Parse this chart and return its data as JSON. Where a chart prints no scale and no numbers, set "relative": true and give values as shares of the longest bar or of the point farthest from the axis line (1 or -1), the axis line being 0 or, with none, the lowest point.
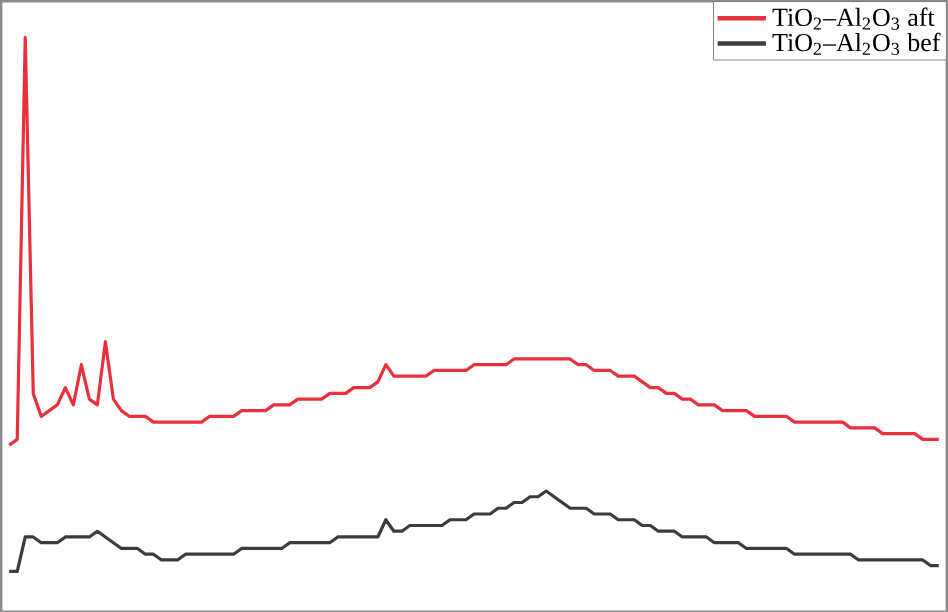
{
  "chart_data": {
    "type": "line",
    "relative": true,
    "legend": "top right",
    "marker": "none",
    "line_style": "solid",
    "categories": [
      null,
      null,
      null,
      null,
      null,
      null,
      null,
      null,
      null,
      null,
      null,
      null,
      null,
      null,
      null,
      null,
      null,
      null,
      null,
      null,
      null,
      null,
      null,
      null,
      null,
      null,
      null,
      null,
      null,
      null,
      null,
      null,
      null,
      null,
      null,
      null,
      null,
      null,
      null,
      null,
      null,
      null,
      null,
      null,
      null,
      null,
      null,
      null,
      null,
      null,
      null,
      null,
      null,
      null,
      null,
      null,
      null,
      null,
      null,
      null,
      null,
      null,
      null,
      null,
      null,
      null,
      null,
      null,
      null,
      null,
      null,
      null,
      null,
      null,
      null,
      null,
      null,
      null,
      null,
      null,
      null,
      null,
      null,
      null,
      null,
      null,
      null,
      null,
      null,
      null,
      null,
      null,
      null,
      null,
      null,
      null,
      null,
      null,
      null,
      null,
      null,
      null,
      null,
      null,
      null,
      null,
      null,
      null,
      null,
      null,
      null,
      null,
      null,
      null,
      null,
      null,
      null
    ],
    "series": [
      {
        "name": "TiO$_{2}$–Al$_{2}$O$_{3}$ aft",
        "color": "#e8313a",
        "values": [
          0.29,
          0.3,
          1.0,
          0.38,
          0.34,
          0.35,
          0.36,
          0.39,
          0.36,
          0.43,
          0.37,
          0.36,
          0.47,
          0.37,
          0.35,
          0.34,
          0.34,
          0.34,
          0.33,
          0.33,
          0.33,
          0.33,
          0.33,
          0.33,
          0.33,
          0.34,
          0.34,
          0.34,
          0.34,
          0.35,
          0.35,
          0.35,
          0.35,
          0.36,
          0.36,
          0.36,
          0.37,
          0.37,
          0.37,
          0.37,
          0.38,
          0.38,
          0.38,
          0.39,
          0.39,
          0.39,
          0.4,
          0.43,
          0.41,
          0.41,
          0.41,
          0.41,
          0.41,
          0.42,
          0.42,
          0.42,
          0.42,
          0.42,
          0.43,
          0.43,
          0.43,
          0.43,
          0.43,
          0.44,
          0.44,
          0.44,
          0.44,
          0.44,
          0.44,
          0.44,
          0.44,
          0.43,
          0.43,
          0.42,
          0.42,
          0.42,
          0.41,
          0.41,
          0.41,
          0.4,
          0.39,
          0.39,
          0.38,
          0.38,
          0.37,
          0.37,
          0.36,
          0.36,
          0.36,
          0.35,
          0.35,
          0.35,
          0.35,
          0.34,
          0.34,
          0.34,
          0.34,
          0.34,
          0.33,
          0.33,
          0.33,
          0.33,
          0.33,
          0.33,
          0.33,
          0.32,
          0.32,
          0.32,
          0.32,
          0.31,
          0.31,
          0.31,
          0.31,
          0.31,
          0.3,
          0.3,
          0.3
        ]
      },
      {
        "name": "TiO$_{2}$–Al$_{2}$O$_{3}$ bef",
        "color": "#3c3c3c",
        "values": [
          0.07,
          0.07,
          0.13,
          0.13,
          0.12,
          0.12,
          0.12,
          0.13,
          0.13,
          0.13,
          0.13,
          0.14,
          0.13,
          0.12,
          0.11,
          0.11,
          0.11,
          0.1,
          0.1,
          0.09,
          0.09,
          0.09,
          0.1,
          0.1,
          0.1,
          0.1,
          0.1,
          0.1,
          0.1,
          0.11,
          0.11,
          0.11,
          0.11,
          0.11,
          0.11,
          0.12,
          0.12,
          0.12,
          0.12,
          0.12,
          0.12,
          0.13,
          0.13,
          0.13,
          0.13,
          0.13,
          0.13,
          0.16,
          0.14,
          0.14,
          0.15,
          0.15,
          0.15,
          0.15,
          0.15,
          0.16,
          0.16,
          0.16,
          0.17,
          0.17,
          0.17,
          0.18,
          0.18,
          0.19,
          0.19,
          0.2,
          0.2,
          0.21,
          0.2,
          0.19,
          0.18,
          0.18,
          0.18,
          0.17,
          0.17,
          0.17,
          0.16,
          0.16,
          0.16,
          0.15,
          0.15,
          0.14,
          0.14,
          0.14,
          0.13,
          0.13,
          0.13,
          0.13,
          0.12,
          0.12,
          0.12,
          0.12,
          0.11,
          0.11,
          0.11,
          0.11,
          0.11,
          0.11,
          0.1,
          0.1,
          0.1,
          0.1,
          0.1,
          0.1,
          0.1,
          0.1,
          0.09,
          0.09,
          0.09,
          0.09,
          0.09,
          0.09,
          0.09,
          0.09,
          0.09,
          0.08,
          0.08
        ]
      }
    ]
  }
}
